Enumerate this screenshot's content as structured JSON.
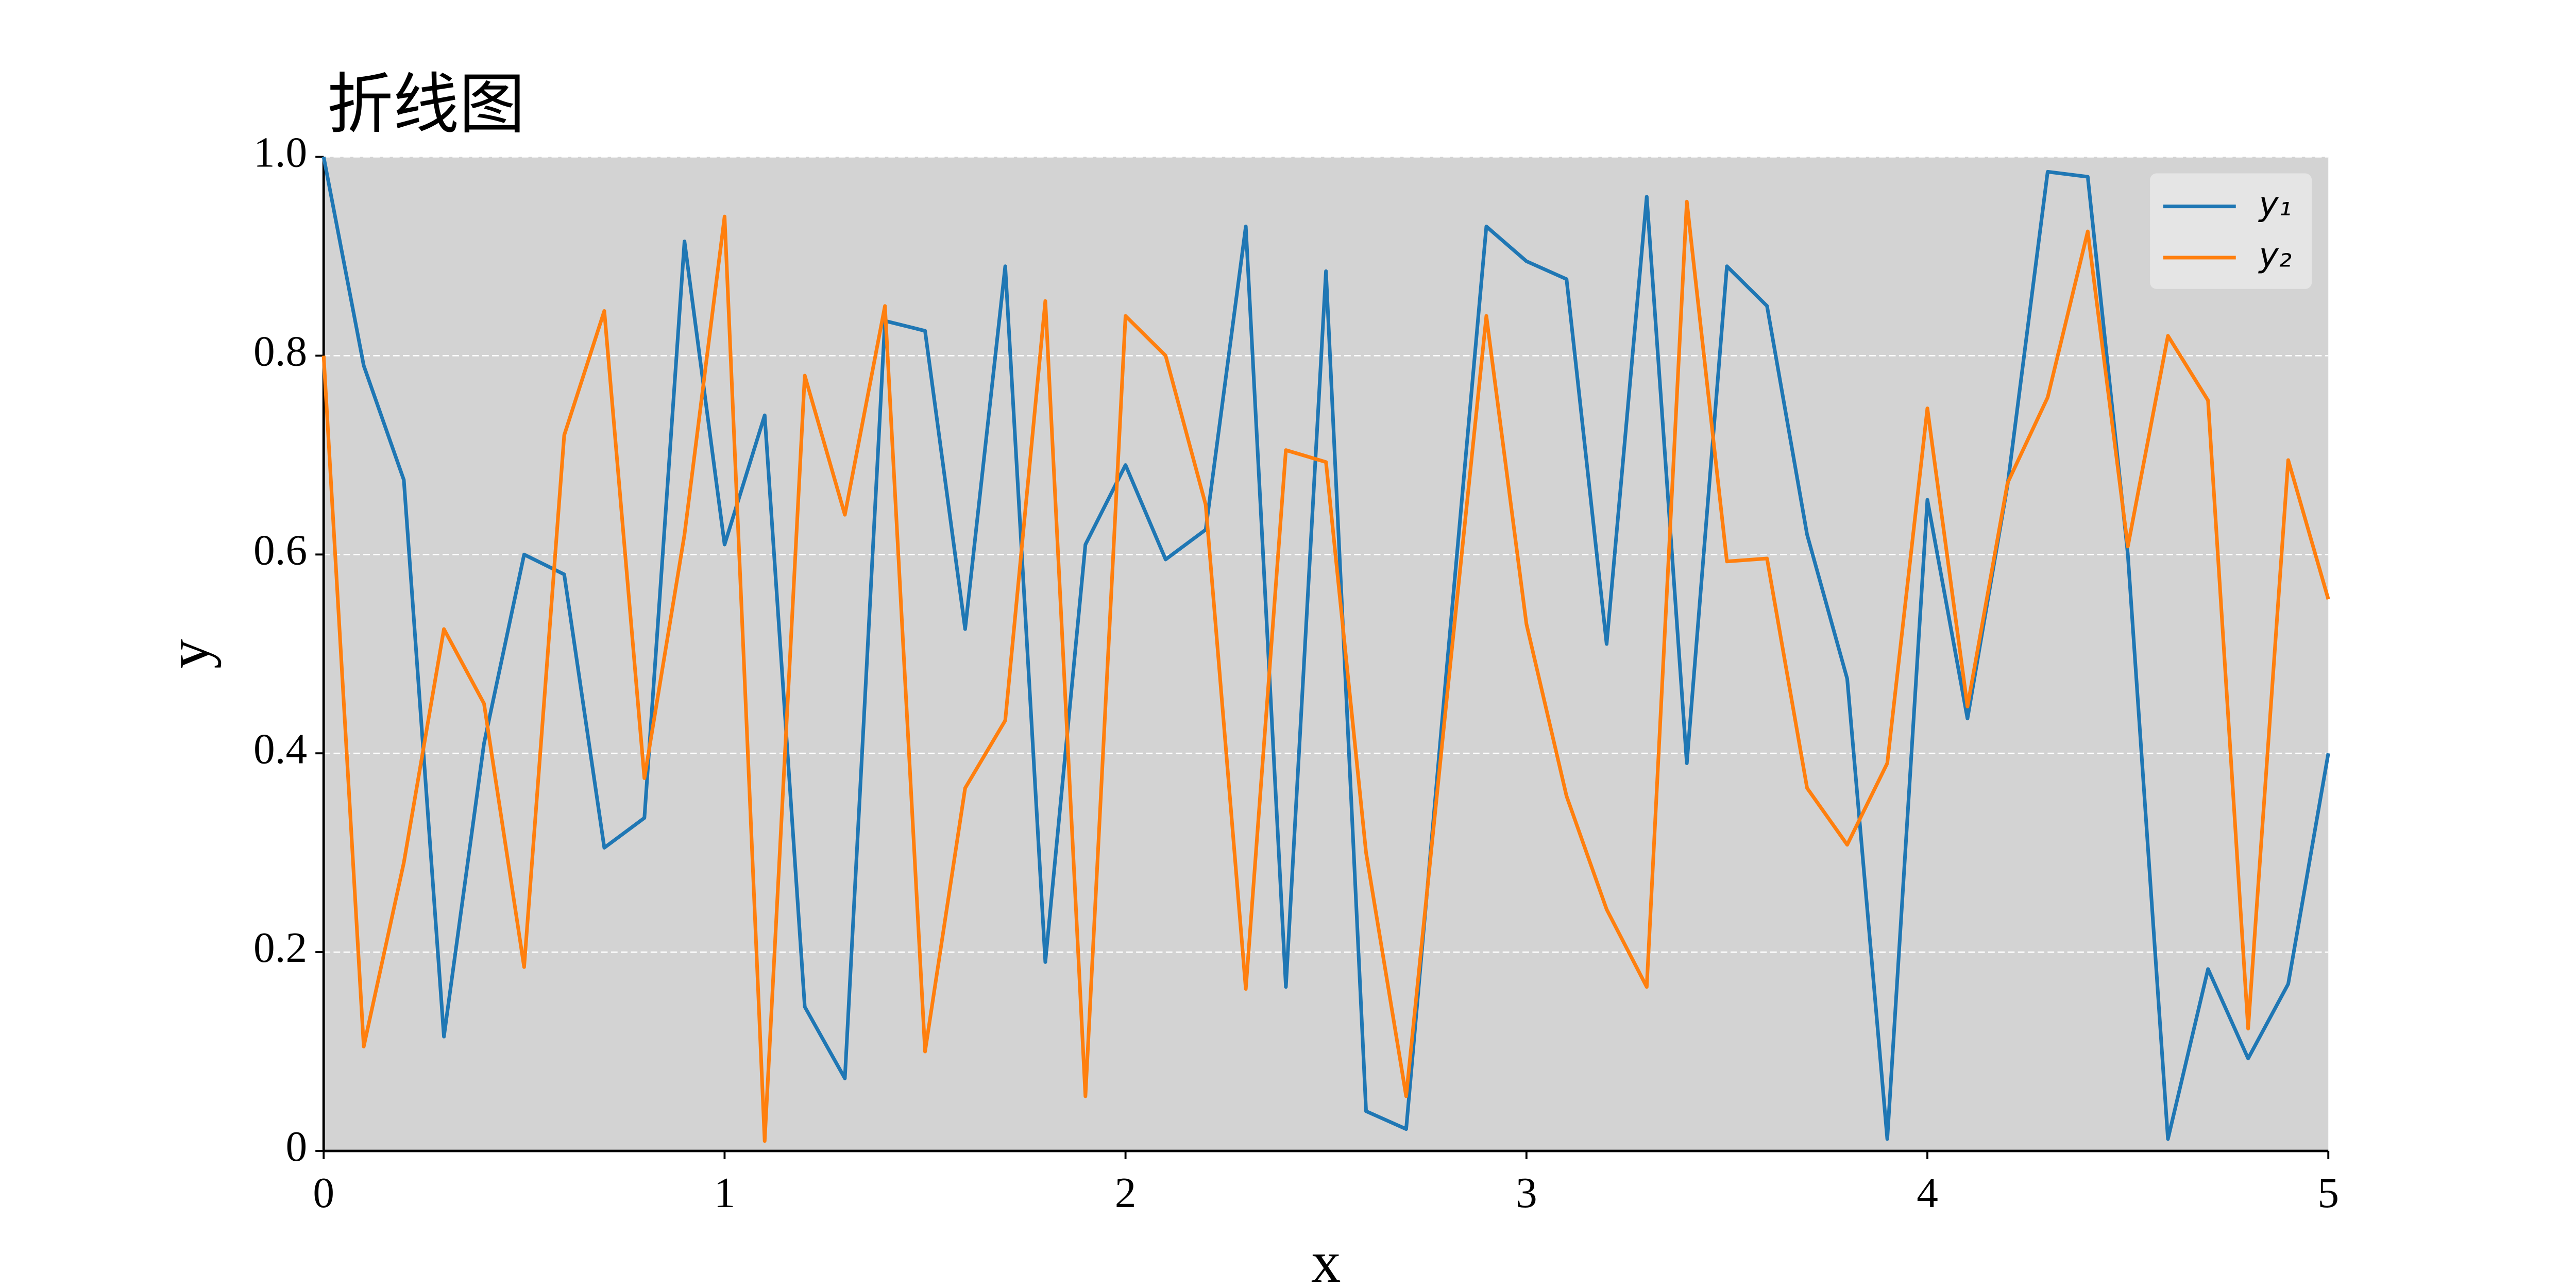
{
  "chart_data": {
    "type": "line",
    "title": "折线图",
    "xlabel": "x",
    "ylabel": "y",
    "x": [
      0,
      0.1,
      0.2,
      0.3,
      0.4,
      0.5,
      0.6,
      0.7,
      0.8,
      0.9,
      1,
      1.1,
      1.2,
      1.3,
      1.4,
      1.5,
      1.6,
      1.7,
      1.8,
      1.9,
      2,
      2.1,
      2.2,
      2.3,
      2.4,
      2.5,
      2.6,
      2.7,
      2.8,
      2.9,
      3,
      3.1,
      3.2,
      3.3,
      3.4,
      3.5,
      3.6,
      3.7,
      3.8,
      3.9,
      4,
      4.1,
      4.2,
      4.3,
      4.4,
      4.5,
      4.6,
      4.7,
      4.8,
      4.9,
      5
    ],
    "series": [
      {
        "name": "y₁",
        "color": "#1f77b4",
        "values": [
          1.0,
          0.79,
          0.675,
          0.115,
          0.41,
          0.6,
          0.58,
          0.305,
          0.335,
          0.915,
          0.61,
          0.74,
          0.145,
          0.073,
          0.835,
          0.825,
          0.525,
          0.89,
          0.19,
          0.61,
          0.69,
          0.595,
          0.625,
          0.93,
          0.165,
          0.885,
          0.04,
          0.022,
          0.48,
          0.93,
          0.895,
          0.877,
          0.51,
          0.96,
          0.39,
          0.89,
          0.85,
          0.62,
          0.475,
          0.012,
          0.655,
          0.435,
          0.67,
          0.985,
          0.98,
          0.6,
          0.012,
          0.183,
          0.093,
          0.168,
          0.4
        ]
      },
      {
        "name": "y₂",
        "color": "#ff7f0e",
        "values": [
          0.8,
          0.105,
          0.29,
          0.525,
          0.45,
          0.185,
          0.72,
          0.845,
          0.375,
          0.62,
          0.94,
          0.01,
          0.78,
          0.64,
          0.85,
          0.1,
          0.365,
          0.433,
          0.855,
          0.055,
          0.84,
          0.8,
          0.65,
          0.163,
          0.705,
          0.693,
          0.3,
          0.055,
          0.45,
          0.84,
          0.53,
          0.357,
          0.243,
          0.165,
          0.955,
          0.593,
          0.596,
          0.365,
          0.308,
          0.39,
          0.747,
          0.447,
          0.672,
          0.758,
          0.925,
          0.608,
          0.82,
          0.755,
          0.123,
          0.695,
          0.555
        ]
      }
    ],
    "xlim": [
      0,
      5
    ],
    "xticks": [
      0,
      1,
      2,
      3,
      4,
      5
    ],
    "ylim": [
      0,
      1
    ],
    "yticks": [
      0,
      {
        "value": 0.2,
        "label": "0.2"
      },
      {
        "value": 0.4,
        "label": "0.4"
      },
      {
        "value": 0.6,
        "label": "0.6"
      },
      {
        "value": 0.8,
        "label": "0.8"
      },
      {
        "value": 1,
        "label": "1.0"
      }
    ],
    "grid": true,
    "legend": "upper right"
  }
}
